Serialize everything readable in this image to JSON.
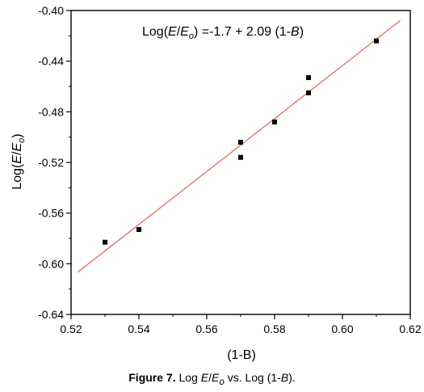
{
  "chart_data": {
    "type": "scatter",
    "xlabel": "(1-B)",
    "ylabel": {
      "prefix": "Log(",
      "var1": "E",
      "slash": "/",
      "var2": "E",
      "sub": "o",
      "suffix": ")"
    },
    "xlim": [
      0.52,
      0.62
    ],
    "ylim": [
      -0.64,
      -0.4
    ],
    "xticks": [
      "0.52",
      "0.54",
      "0.56",
      "0.58",
      "0.60",
      "0.62"
    ],
    "yticks": [
      "-0.40",
      "-0.44",
      "-0.48",
      "-0.52",
      "-0.56",
      "-0.60",
      "-0.64"
    ],
    "xtick_values": [
      0.52,
      0.54,
      0.56,
      0.58,
      0.6,
      0.62
    ],
    "ytick_values": [
      -0.4,
      -0.44,
      -0.48,
      -0.52,
      -0.56,
      -0.6,
      -0.64
    ],
    "points": [
      {
        "x": 0.53,
        "y": -0.583
      },
      {
        "x": 0.54,
        "y": -0.573
      },
      {
        "x": 0.57,
        "y": -0.504
      },
      {
        "x": 0.57,
        "y": -0.516
      },
      {
        "x": 0.58,
        "y": -0.488
      },
      {
        "x": 0.59,
        "y": -0.453
      },
      {
        "x": 0.59,
        "y": -0.465
      },
      {
        "x": 0.61,
        "y": -0.424
      }
    ],
    "fit_line": {
      "x": [
        0.522,
        0.617
      ],
      "y": [
        -0.6066,
        -0.408
      ],
      "color": "#e8413a"
    },
    "equation": {
      "prefix": "Log(",
      "var1": "E",
      "slash": "/",
      "var2": "E",
      "sub": "o",
      "rest": ") =-1.7 + 2.09 (1-",
      "var3": "B",
      "end": ")"
    },
    "marker_color": "#000000",
    "grid": false,
    "legend": "none"
  },
  "caption": {
    "label": "Figure 7.",
    "text_a": " Log ",
    "var1": "E",
    "slash": "/",
    "var2": "E",
    "sub": "o",
    "text_b": " vs. Log (1-",
    "var3": "B",
    "text_c": ")."
  }
}
